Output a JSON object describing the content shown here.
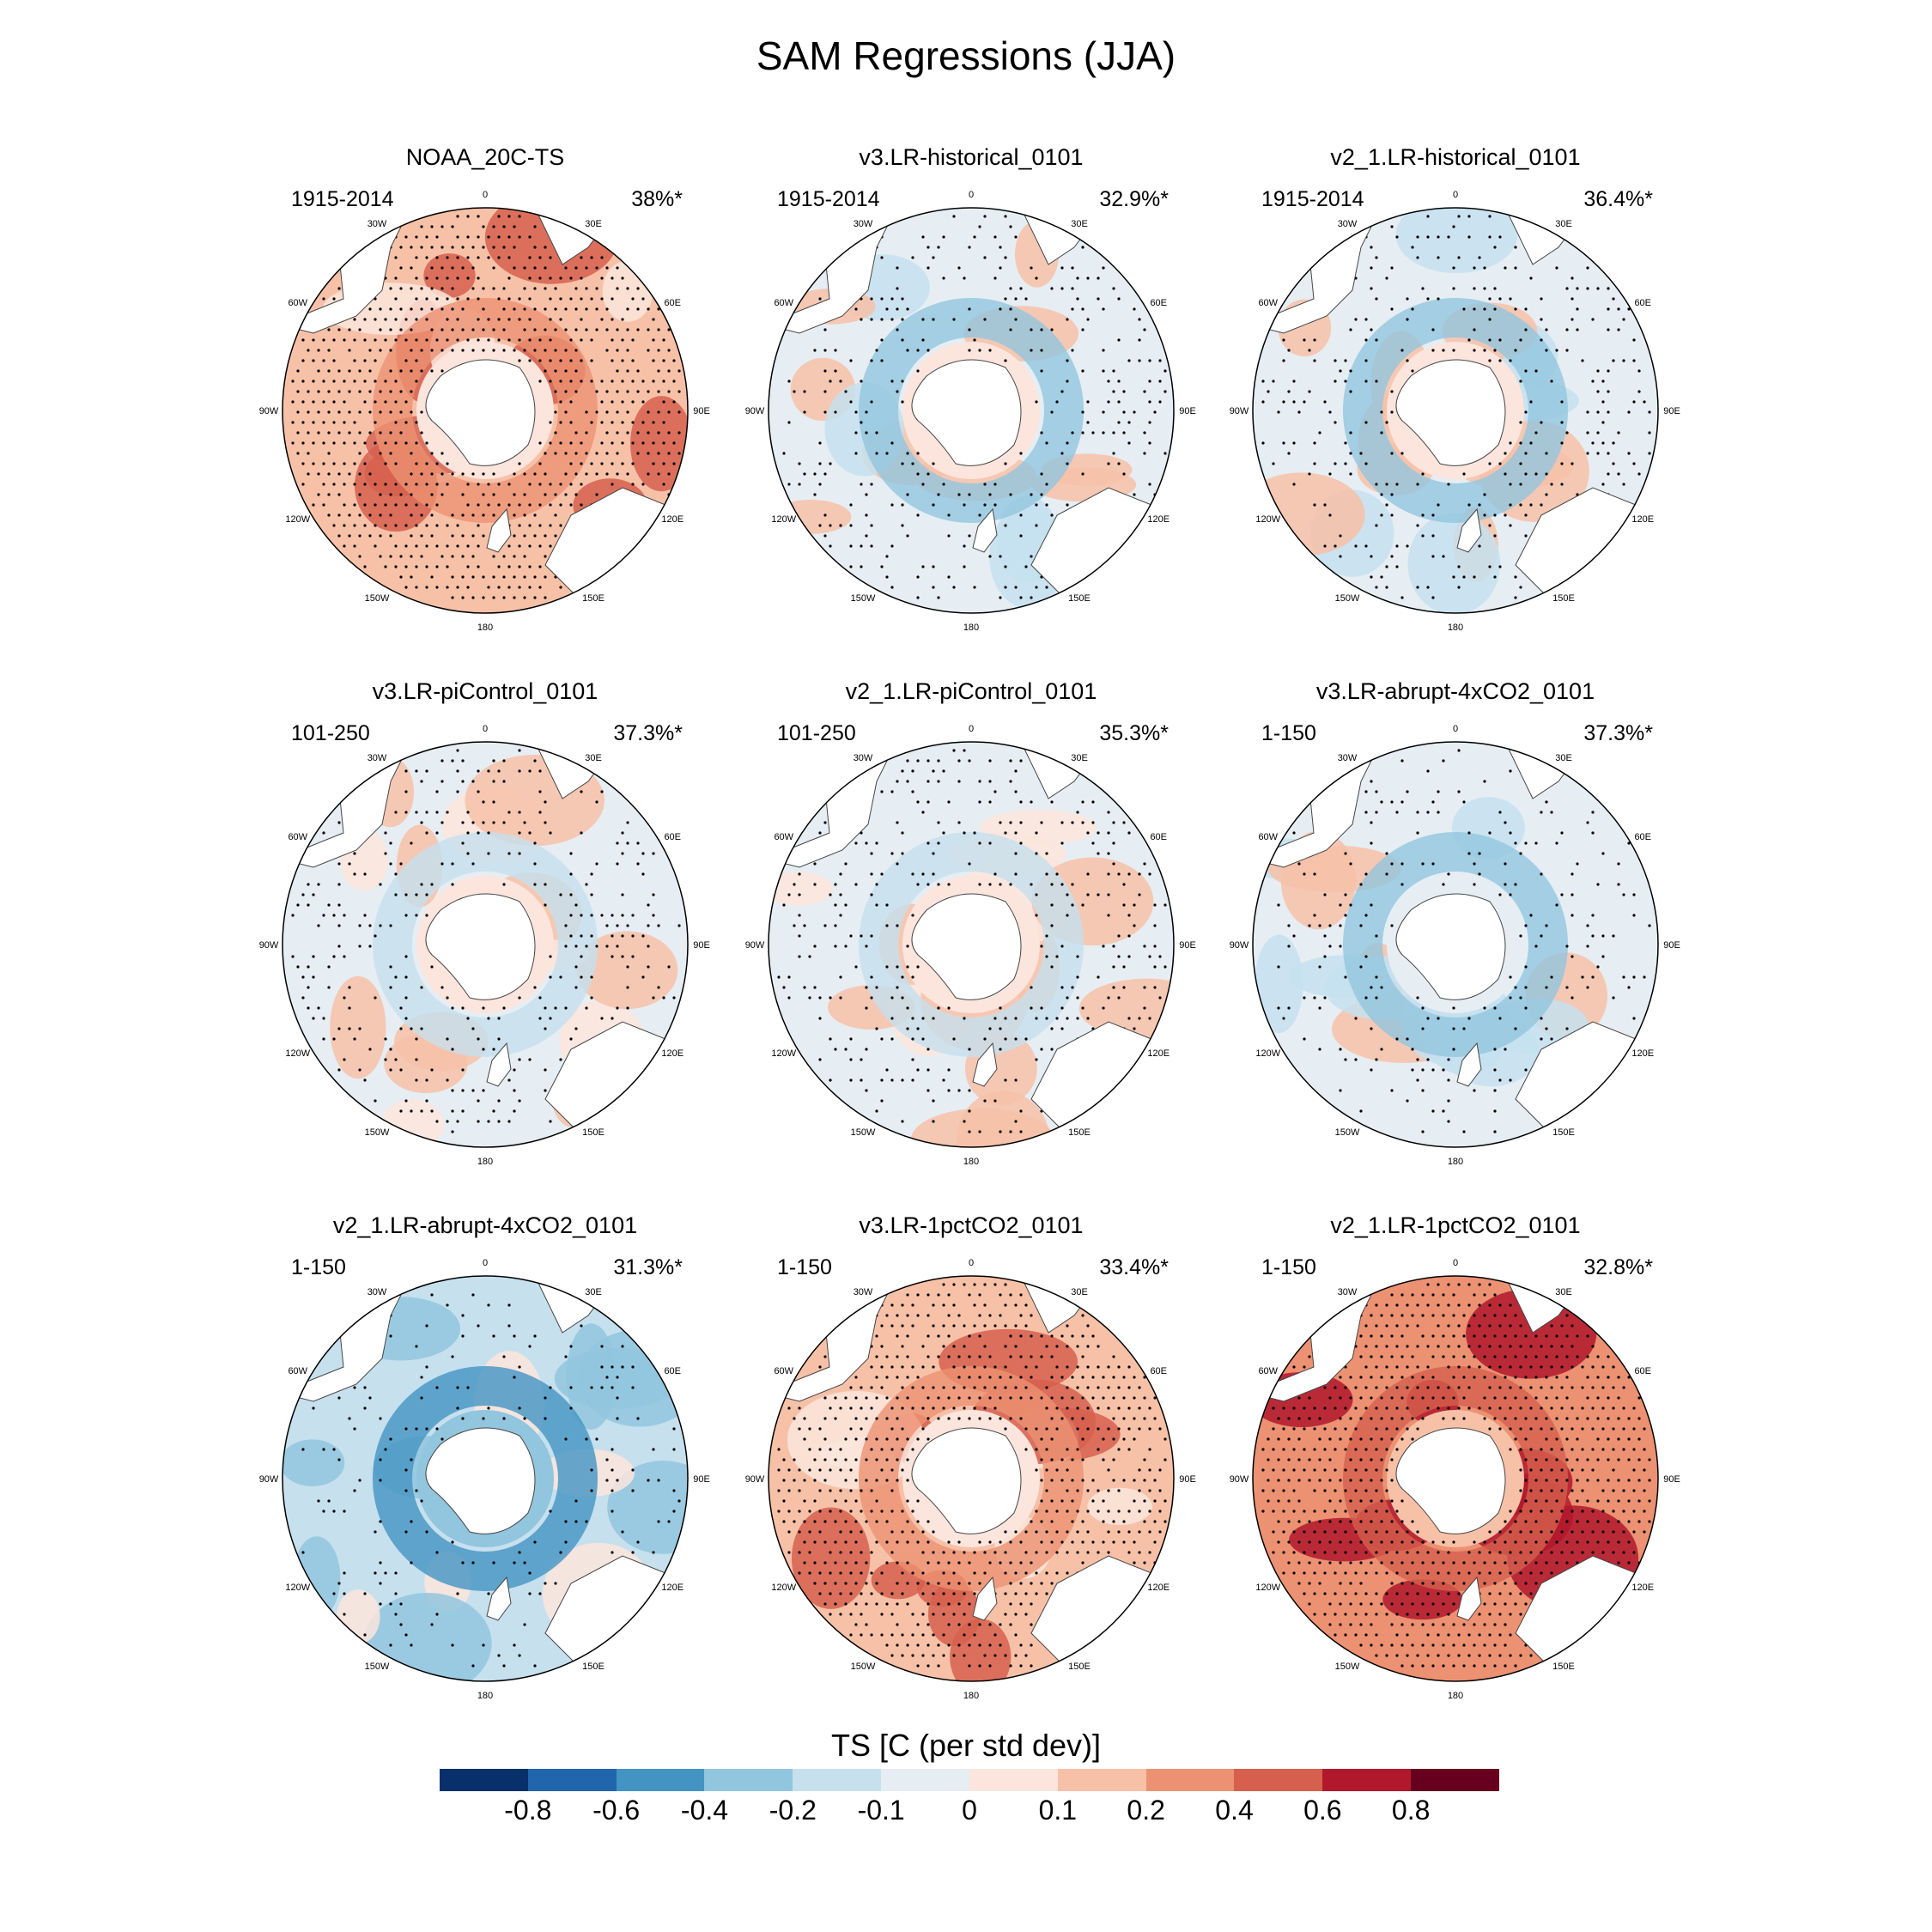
{
  "title": "SAM Regressions (JJA)",
  "panels": [
    {
      "name": "NOAA_20C-TS",
      "period": "1915-2014",
      "pct": "38%*",
      "pattern": "noaa"
    },
    {
      "name": "v3.LR-historical_0101",
      "period": "1915-2014",
      "pct": "32.9%*",
      "pattern": "mixed_cool"
    },
    {
      "name": "v2_1.LR-historical_0101",
      "period": "1915-2014",
      "pct": "36.4%*",
      "pattern": "mixed_cool"
    },
    {
      "name": "v3.LR-piControl_0101",
      "period": "101-250",
      "pct": "37.3%*",
      "pattern": "mixed"
    },
    {
      "name": "v2_1.LR-piControl_0101",
      "period": "101-250",
      "pct": "35.3%*",
      "pattern": "mixed"
    },
    {
      "name": "v3.LR-abrupt-4xCO2_0101",
      "period": "1-150",
      "pct": "37.3%*",
      "pattern": "cool_light"
    },
    {
      "name": "v2_1.LR-abrupt-4xCO2_0101",
      "period": "1-150",
      "pct": "31.3%*",
      "pattern": "cool"
    },
    {
      "name": "v3.LR-1pctCO2_0101",
      "period": "1-150",
      "pct": "33.4%*",
      "pattern": "warm"
    },
    {
      "name": "v2_1.LR-1pctCO2_0101",
      "period": "1-150",
      "pct": "32.8%*",
      "pattern": "hot"
    }
  ],
  "longitude_labels": [
    "0",
    "30E",
    "60E",
    "90E",
    "120E",
    "150E",
    "180",
    "150W",
    "120W",
    "90W",
    "60W",
    "30W"
  ],
  "colorbar": {
    "title": "TS [C (per std dev)]",
    "labels": [
      "-0.8",
      "-0.6",
      "-0.4",
      "-0.2",
      "-0.1",
      "0",
      "0.1",
      "0.2",
      "0.4",
      "0.6",
      "0.8"
    ],
    "colors": [
      "#08306b",
      "#2166ac",
      "#4393c3",
      "#92c5de",
      "#c6e0ee",
      "#e6eef3",
      "#fbe5dc",
      "#f7c1a8",
      "#ec9172",
      "#d6604d",
      "#b2182b",
      "#67001f"
    ]
  }
}
